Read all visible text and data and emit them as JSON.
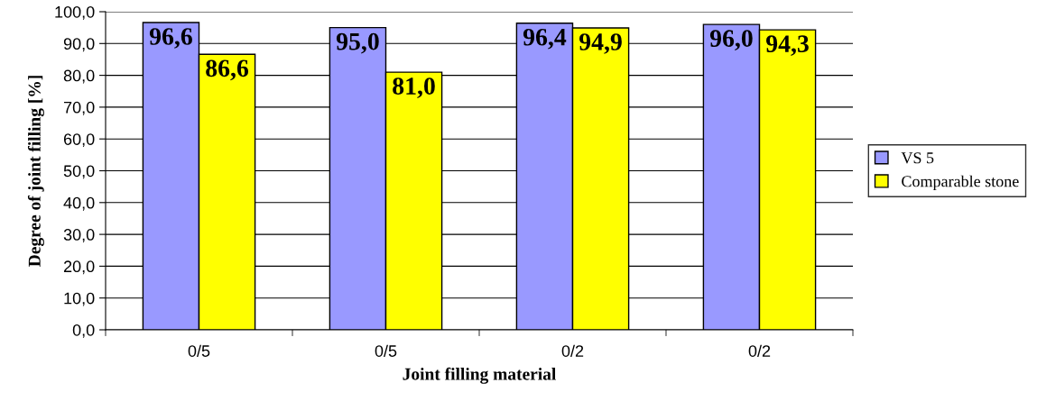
{
  "chart_data": {
    "type": "bar",
    "xlabel": "Joint filling material",
    "ylabel": "Degree of joint filling [%]",
    "categories": [
      "0/5",
      "0/5",
      "0/2",
      "0/2"
    ],
    "series": [
      {
        "name": "VS 5",
        "color": "#9999ff",
        "values": [
          96.6,
          95.0,
          96.4,
          96.0
        ],
        "value_labels": [
          "96,6",
          "95,0",
          "96,4",
          "96,0"
        ]
      },
      {
        "name": "Comparable stone",
        "color": "#ffff00",
        "values": [
          86.6,
          81.0,
          94.9,
          94.3
        ],
        "value_labels": [
          "86,6",
          "81,0",
          "94,9",
          "94,3"
        ]
      }
    ],
    "ylim": [
      0,
      100
    ],
    "yticks": [
      {
        "value": 0,
        "label": "0,0"
      },
      {
        "value": 10,
        "label": "10,0"
      },
      {
        "value": 20,
        "label": "20,0"
      },
      {
        "value": 30,
        "label": "30,0"
      },
      {
        "value": 40,
        "label": "40,0"
      },
      {
        "value": 50,
        "label": "50,0"
      },
      {
        "value": 60,
        "label": "60,0"
      },
      {
        "value": 70,
        "label": "70,0"
      },
      {
        "value": 80,
        "label": "80,0"
      },
      {
        "value": 90,
        "label": "90,0"
      },
      {
        "value": 100,
        "label": "100,0"
      }
    ],
    "grid": "y",
    "legend": "right"
  }
}
